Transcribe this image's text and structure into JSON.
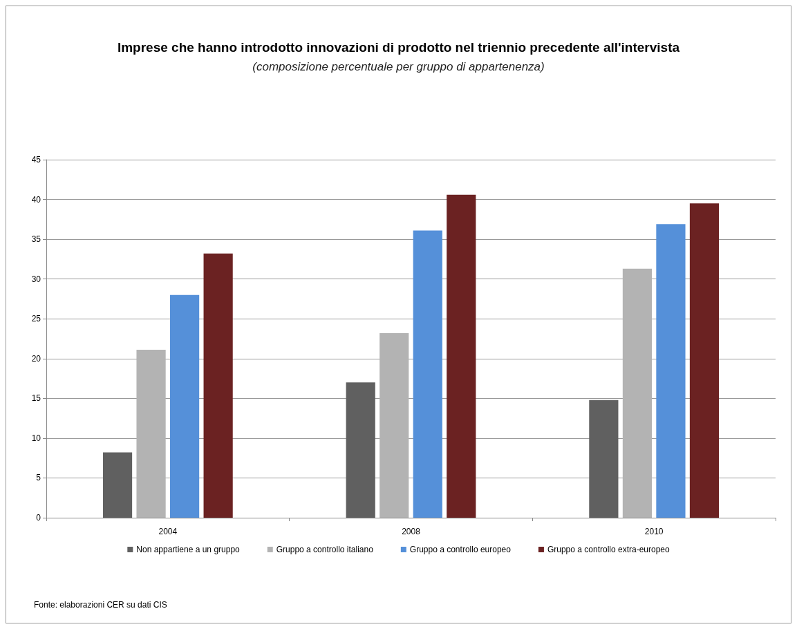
{
  "chart_data": {
    "type": "bar",
    "title": "Imprese che hanno introdotto innovazioni di prodotto nel triennio precedente all'intervista",
    "subtitle": "(composizione percentuale per gruppo di appartenenza)",
    "categories": [
      "2004",
      "2008",
      "2010"
    ],
    "series": [
      {
        "name": "Non appartiene a un gruppo",
        "color": "#606060",
        "values": [
          8.2,
          17.0,
          14.8
        ]
      },
      {
        "name": "Gruppo a controllo italiano",
        "color": "#b3b3b3",
        "values": [
          21.1,
          23.2,
          31.3
        ]
      },
      {
        "name": "Gruppo a controllo europeo",
        "color": "#5590d9",
        "values": [
          28.0,
          36.1,
          36.9
        ]
      },
      {
        "name": "Gruppo a controllo extra-europeo",
        "color": "#6b2222",
        "values": [
          33.2,
          40.6,
          39.5
        ]
      }
    ],
    "ylim": [
      0,
      45
    ],
    "yticks": [
      0,
      5,
      10,
      15,
      20,
      25,
      30,
      35,
      40,
      45
    ],
    "grid": "y",
    "legend": "bottom",
    "annotations": [
      "Fonte: elaborazioni CER su dati CIS"
    ]
  }
}
